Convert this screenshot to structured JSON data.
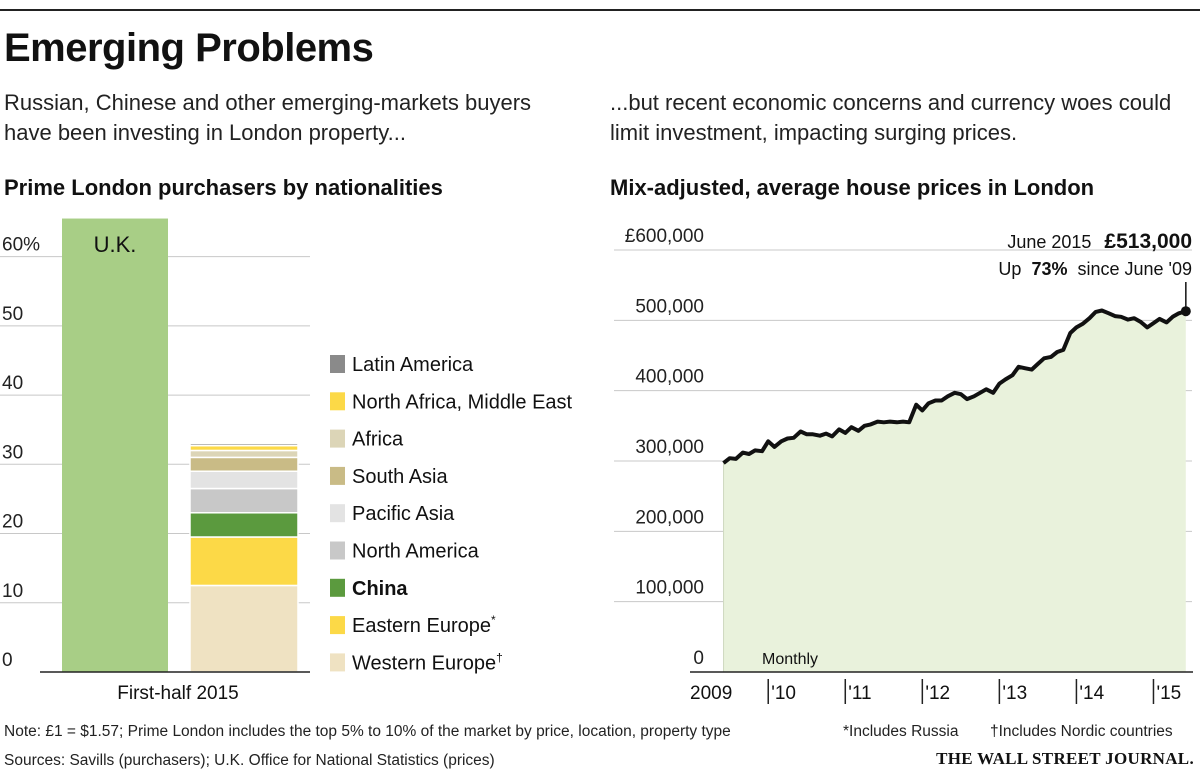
{
  "header": {
    "title": "Emerging Problems",
    "subtitle_left": "Russian, Chinese and other emerging-markets buyers have been investing in London property...",
    "subtitle_right": "...but recent economic concerns and currency woes could limit investment, impacting surging prices."
  },
  "chart_data": [
    {
      "type": "bar",
      "title": "Prime London purchasers by nationalities",
      "y_tick_labels": [
        "60%",
        "50",
        "40",
        "30",
        "20",
        "10",
        "0"
      ],
      "ylim": [
        0,
        65
      ],
      "xlabel": "First-half 2015",
      "uk_bar": {
        "name": "U.K.",
        "value": 65.5,
        "color": "#a8ce86"
      },
      "stack": [
        {
          "name": "Western Europe",
          "sup": "†",
          "value": 12.5,
          "color": "#efe2c2"
        },
        {
          "name": "Eastern Europe",
          "sup": "*",
          "value": 7.0,
          "color": "#fcd947"
        },
        {
          "name": "China",
          "sup": "",
          "value": 3.5,
          "color": "#5b9a3e",
          "bold": true
        },
        {
          "name": "North America",
          "sup": "",
          "value": 3.5,
          "color": "#c8c8c8"
        },
        {
          "name": "Pacific Asia",
          "sup": "",
          "value": 2.5,
          "color": "#e3e3e3"
        },
        {
          "name": "South Asia",
          "sup": "",
          "value": 2.0,
          "color": "#c9bb86"
        },
        {
          "name": "Africa",
          "sup": "",
          "value": 1.0,
          "color": "#dcd5b7"
        },
        {
          "name": "North Africa, Middle East",
          "sup": "",
          "value": 0.7,
          "color": "#fcd947"
        },
        {
          "name": "Latin America",
          "sup": "",
          "value": 0.3,
          "color": "#8a8a8a"
        }
      ],
      "legend_order": [
        "Latin America",
        "North Africa, Middle East",
        "Africa",
        "South Asia",
        "Pacific Asia",
        "North America",
        "China",
        "Eastern Europe",
        "Western Europe"
      ]
    },
    {
      "type": "area",
      "title": "Mix-adjusted, average house prices in London",
      "y_tick_labels": [
        "£600,000",
        "500,000",
        "400,000",
        "300,000",
        "200,000",
        "100,000",
        "0"
      ],
      "ylim": [
        0,
        600000
      ],
      "x_tick_labels": [
        "2009",
        "'10",
        "'11",
        "'12",
        "'13",
        "'14",
        "'15"
      ],
      "x_range": [
        2009.4,
        2015.5
      ],
      "frequency_label": "Monthly",
      "annotation": {
        "date": "June 2015",
        "value": "£513,000",
        "change_prefix": "Up",
        "change_value": "73%",
        "change_suffix": "since June '09"
      },
      "series": [
        {
          "name": "Average house price",
          "x": [
            2009.42,
            2009.5,
            2009.58,
            2009.67,
            2009.75,
            2009.83,
            2009.92,
            2010.0,
            2010.08,
            2010.17,
            2010.25,
            2010.33,
            2010.42,
            2010.5,
            2010.58,
            2010.67,
            2010.75,
            2010.83,
            2010.92,
            2011.0,
            2011.08,
            2011.17,
            2011.25,
            2011.33,
            2011.42,
            2011.5,
            2011.58,
            2011.67,
            2011.75,
            2011.83,
            2011.92,
            2012.0,
            2012.08,
            2012.17,
            2012.25,
            2012.33,
            2012.42,
            2012.5,
            2012.58,
            2012.67,
            2012.75,
            2012.83,
            2012.92,
            2013.0,
            2013.08,
            2013.17,
            2013.25,
            2013.33,
            2013.42,
            2013.5,
            2013.58,
            2013.67,
            2013.75,
            2013.83,
            2013.92,
            2014.0,
            2014.08,
            2014.17,
            2014.25,
            2014.33,
            2014.42,
            2014.5,
            2014.58,
            2014.67,
            2014.75,
            2014.83,
            2014.92,
            2015.0,
            2015.08,
            2015.17,
            2015.25,
            2015.33,
            2015.42
          ],
          "values": [
            297000,
            304000,
            303000,
            312000,
            310000,
            315000,
            314000,
            328000,
            320000,
            328000,
            332000,
            333000,
            342000,
            338000,
            338000,
            336000,
            339000,
            335000,
            345000,
            340000,
            348000,
            343000,
            350000,
            352000,
            356000,
            355000,
            356000,
            355000,
            356000,
            355000,
            380000,
            372000,
            382000,
            386000,
            386000,
            392000,
            397000,
            395000,
            388000,
            392000,
            397000,
            402000,
            397000,
            410000,
            416000,
            422000,
            434000,
            432000,
            430000,
            438000,
            446000,
            448000,
            455000,
            458000,
            482000,
            490000,
            495000,
            503000,
            512000,
            514000,
            510000,
            506000,
            505000,
            501000,
            503000,
            498000,
            490000,
            496000,
            502000,
            497000,
            505000,
            510000,
            513000
          ]
        }
      ]
    }
  ],
  "footer": {
    "note": "Note: £1 = $1.57; Prime London includes the top 5% to 10% of the market by price, location, property type",
    "sources": "Sources: Savills (purchasers); U.K. Office for National Statistics (prices)",
    "footnote_russia": "*Includes Russia",
    "footnote_nordic": "†Includes Nordic countries",
    "brand": "THE WALL STREET JOURNAL."
  },
  "colors": {
    "uk_green": "#a8ce86",
    "area_fill": "#e9f2dc",
    "line": "#111111",
    "grid": "#c8c8c8"
  }
}
